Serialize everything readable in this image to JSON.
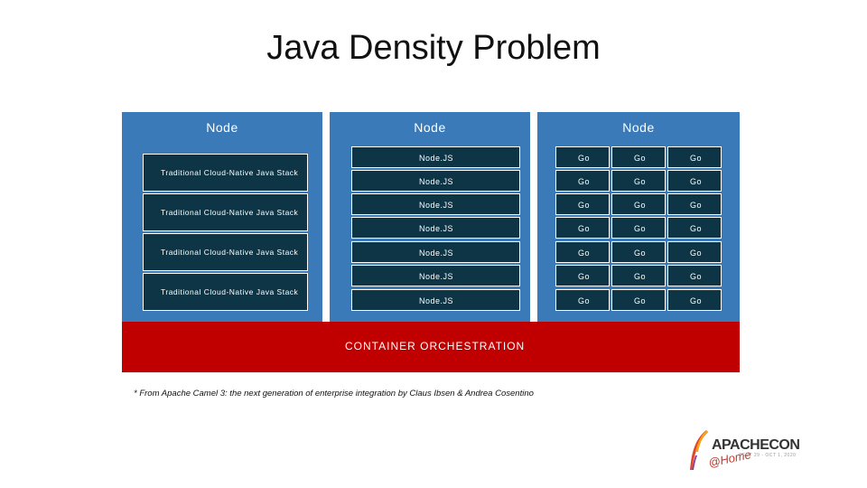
{
  "title": "Java Density Problem",
  "node_label": "Node",
  "java_stack_label": "Traditional Cloud-Native Java Stack",
  "nodejs_label": "Node.JS",
  "go_label": "Go",
  "orchestration_label": "CONTAINER ORCHESTRATION",
  "footnote": "* From Apache Camel 3: the next generation of enterprise integration by Claus Ibsen & Andrea Cosentino",
  "logo": {
    "apache": "APACHE",
    "con": "CON",
    "home": "@Home",
    "subtitle": "SEPT 29 - OCT 1, 2020"
  },
  "colors": {
    "panel": "#3a7ab8",
    "box": "#0e3545",
    "orchestration": "#c00000"
  }
}
